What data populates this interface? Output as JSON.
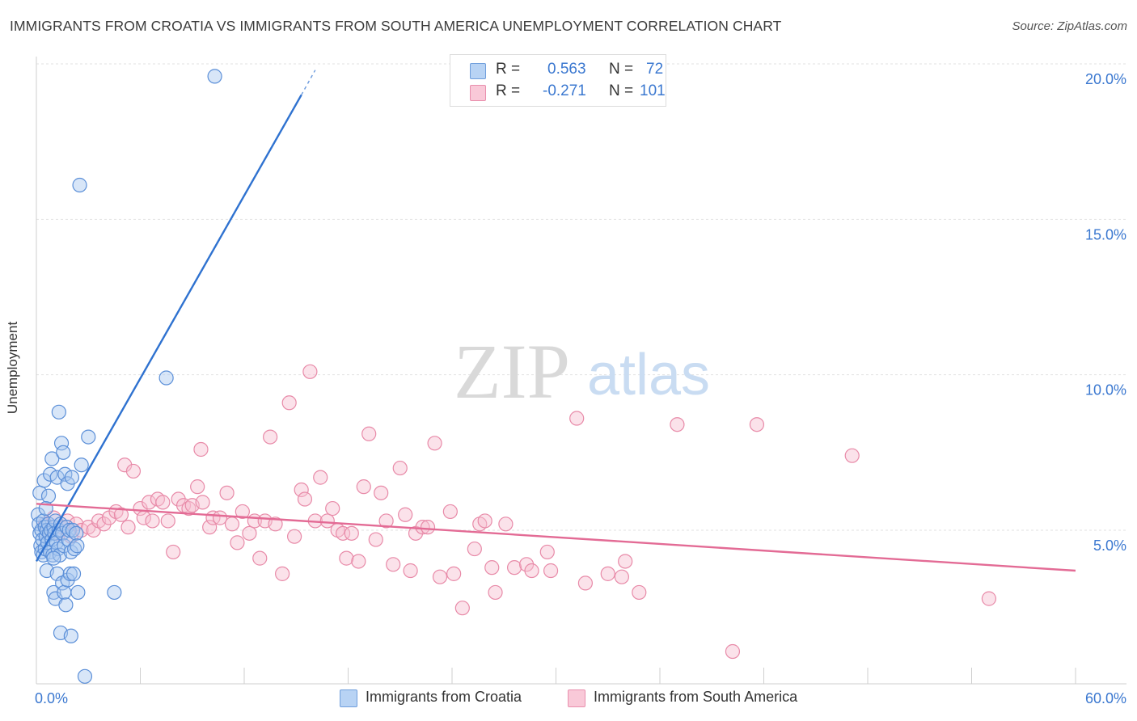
{
  "title": "IMMIGRANTS FROM CROATIA VS IMMIGRANTS FROM SOUTH AMERICA UNEMPLOYMENT CORRELATION CHART",
  "source": "Source: ZipAtlas.com",
  "watermark": {
    "zip": "ZIP",
    "atlas": "atlas"
  },
  "legend": {
    "r_label": "R =",
    "n_label": "N =",
    "rows": [
      {
        "r": "0.563",
        "n": "72"
      },
      {
        "r": "-0.271",
        "n": "101"
      }
    ]
  },
  "chart_data": {
    "type": "scatter",
    "title": "IMMIGRANTS FROM CROATIA VS IMMIGRANTS FROM SOUTH AMERICA UNEMPLOYMENT CORRELATION CHART",
    "xlabel": "",
    "ylabel": "Unemployment",
    "xlim": [
      0,
      60
    ],
    "ylim": [
      0,
      21
    ],
    "x_tick_labels": [
      "0.0%",
      "60.0%"
    ],
    "y_ticks": [
      5,
      10,
      15,
      20
    ],
    "y_tick_labels": [
      "5.0%",
      "10.0%",
      "15.0%",
      "20.0%"
    ],
    "grid": true,
    "legend_position": "bottom",
    "colors": {
      "croatia_fill": "#a8c8f0",
      "croatia_stroke": "#5b8fd8",
      "croatia_line": "#2f72d0",
      "sa_fill": "#f7bfd0",
      "sa_stroke": "#e88aa8",
      "sa_line": "#e36b95",
      "tick_label": "#3b78d0",
      "grid": "#e2e2e2"
    },
    "series": [
      {
        "name": "Immigrants from Croatia",
        "r": 0.563,
        "n": 72,
        "trend": {
          "x0": 0.0,
          "y0": 4.0,
          "x1": 15.3,
          "y1": 19.0,
          "dash_to_x": 16.1,
          "dash_to_y": 19.8
        },
        "points": [
          [
            0.1,
            5.5
          ],
          [
            0.15,
            5.2
          ],
          [
            0.2,
            4.9
          ],
          [
            0.2,
            6.2
          ],
          [
            0.25,
            4.5
          ],
          [
            0.3,
            4.3
          ],
          [
            0.3,
            5.0
          ],
          [
            0.35,
            4.7
          ],
          [
            0.4,
            5.3
          ],
          [
            0.4,
            4.2
          ],
          [
            0.45,
            6.6
          ],
          [
            0.5,
            5.1
          ],
          [
            0.5,
            4.4
          ],
          [
            0.55,
            4.8
          ],
          [
            0.6,
            5.0
          ],
          [
            0.6,
            3.7
          ],
          [
            0.65,
            4.6
          ],
          [
            0.7,
            6.1
          ],
          [
            0.7,
            5.2
          ],
          [
            0.75,
            4.9
          ],
          [
            0.8,
            4.3
          ],
          [
            0.8,
            6.8
          ],
          [
            0.85,
            5.0
          ],
          [
            0.9,
            4.7
          ],
          [
            0.9,
            7.3
          ],
          [
            0.95,
            4.2
          ],
          [
            1.0,
            5.1
          ],
          [
            1.0,
            3.0
          ],
          [
            1.05,
            4.9
          ],
          [
            1.1,
            5.3
          ],
          [
            1.1,
            2.8
          ],
          [
            1.15,
            4.6
          ],
          [
            1.2,
            6.7
          ],
          [
            1.2,
            3.6
          ],
          [
            1.25,
            4.4
          ],
          [
            1.3,
            5.0
          ],
          [
            1.3,
            8.8
          ],
          [
            1.35,
            4.2
          ],
          [
            1.4,
            5.2
          ],
          [
            1.4,
            1.7
          ],
          [
            1.45,
            7.8
          ],
          [
            1.5,
            4.9
          ],
          [
            1.5,
            3.3
          ],
          [
            1.55,
            7.5
          ],
          [
            1.6,
            4.5
          ],
          [
            1.6,
            3.0
          ],
          [
            1.65,
            6.8
          ],
          [
            1.7,
            2.6
          ],
          [
            1.75,
            5.1
          ],
          [
            1.8,
            3.4
          ],
          [
            1.8,
            6.5
          ],
          [
            1.85,
            4.7
          ],
          [
            1.9,
            5.0
          ],
          [
            1.95,
            3.6
          ],
          [
            2.0,
            1.6
          ],
          [
            2.0,
            4.3
          ],
          [
            2.05,
            6.7
          ],
          [
            2.1,
            5.0
          ],
          [
            2.15,
            3.6
          ],
          [
            2.2,
            4.4
          ],
          [
            2.3,
            4.9
          ],
          [
            2.35,
            4.5
          ],
          [
            2.4,
            3.0
          ],
          [
            2.5,
            16.1
          ],
          [
            2.6,
            7.1
          ],
          [
            2.8,
            0.3
          ],
          [
            3.0,
            8.0
          ],
          [
            4.5,
            3.0
          ],
          [
            7.5,
            9.9
          ],
          [
            10.3,
            19.6
          ],
          [
            1.0,
            4.1
          ],
          [
            0.55,
            5.7
          ]
        ]
      },
      {
        "name": "Immigrants from South America",
        "r": -0.271,
        "n": 101,
        "trend": {
          "x0": 0.0,
          "y0": 5.85,
          "x1": 60.0,
          "y1": 3.7
        },
        "points": [
          [
            0.5,
            5.2
          ],
          [
            0.8,
            5.0
          ],
          [
            1.0,
            5.4
          ],
          [
            1.2,
            4.9
          ],
          [
            1.5,
            5.1
          ],
          [
            1.8,
            5.3
          ],
          [
            2.0,
            4.8
          ],
          [
            2.3,
            5.2
          ],
          [
            2.6,
            5.0
          ],
          [
            3.0,
            5.1
          ],
          [
            3.3,
            5.0
          ],
          [
            3.6,
            5.3
          ],
          [
            3.9,
            5.2
          ],
          [
            4.2,
            5.4
          ],
          [
            4.6,
            5.6
          ],
          [
            4.9,
            5.5
          ],
          [
            5.1,
            7.1
          ],
          [
            5.3,
            5.1
          ],
          [
            5.6,
            6.9
          ],
          [
            6.0,
            5.7
          ],
          [
            6.2,
            5.4
          ],
          [
            6.5,
            5.9
          ],
          [
            6.7,
            5.3
          ],
          [
            7.0,
            6.0
          ],
          [
            7.3,
            5.9
          ],
          [
            7.6,
            5.3
          ],
          [
            7.9,
            4.3
          ],
          [
            8.2,
            6.0
          ],
          [
            8.5,
            5.8
          ],
          [
            8.8,
            5.7
          ],
          [
            9.0,
            5.8
          ],
          [
            9.3,
            6.4
          ],
          [
            9.6,
            5.9
          ],
          [
            9.5,
            7.6
          ],
          [
            10.0,
            5.1
          ],
          [
            10.2,
            5.4
          ],
          [
            10.6,
            5.4
          ],
          [
            11.0,
            6.2
          ],
          [
            11.3,
            5.2
          ],
          [
            11.6,
            4.6
          ],
          [
            11.9,
            5.6
          ],
          [
            12.3,
            4.9
          ],
          [
            12.6,
            5.3
          ],
          [
            12.9,
            4.1
          ],
          [
            13.2,
            5.3
          ],
          [
            13.5,
            8.0
          ],
          [
            13.8,
            5.2
          ],
          [
            14.2,
            3.6
          ],
          [
            14.6,
            9.1
          ],
          [
            14.9,
            4.8
          ],
          [
            15.3,
            6.3
          ],
          [
            15.5,
            6.0
          ],
          [
            15.8,
            10.1
          ],
          [
            16.1,
            5.3
          ],
          [
            16.4,
            6.7
          ],
          [
            16.8,
            5.3
          ],
          [
            17.1,
            5.7
          ],
          [
            17.4,
            5.0
          ],
          [
            17.7,
            4.9
          ],
          [
            17.9,
            4.1
          ],
          [
            18.2,
            4.9
          ],
          [
            18.6,
            4.0
          ],
          [
            18.9,
            6.4
          ],
          [
            19.2,
            8.1
          ],
          [
            19.6,
            4.7
          ],
          [
            19.9,
            6.2
          ],
          [
            20.2,
            5.3
          ],
          [
            20.6,
            3.9
          ],
          [
            21.0,
            7.0
          ],
          [
            21.3,
            5.5
          ],
          [
            21.6,
            3.7
          ],
          [
            21.9,
            4.9
          ],
          [
            22.3,
            5.1
          ],
          [
            22.6,
            5.1
          ],
          [
            23.0,
            7.8
          ],
          [
            23.3,
            3.5
          ],
          [
            23.9,
            5.6
          ],
          [
            24.1,
            3.6
          ],
          [
            24.6,
            2.5
          ],
          [
            25.3,
            4.4
          ],
          [
            25.6,
            5.2
          ],
          [
            25.9,
            5.3
          ],
          [
            26.3,
            3.8
          ],
          [
            26.5,
            3.0
          ],
          [
            27.1,
            5.2
          ],
          [
            27.6,
            3.8
          ],
          [
            28.3,
            3.9
          ],
          [
            28.6,
            3.7
          ],
          [
            29.5,
            4.3
          ],
          [
            29.7,
            3.7
          ],
          [
            31.2,
            8.6
          ],
          [
            31.7,
            3.3
          ],
          [
            33.0,
            3.6
          ],
          [
            33.8,
            3.5
          ],
          [
            34.0,
            4.0
          ],
          [
            34.8,
            3.0
          ],
          [
            37.0,
            8.4
          ],
          [
            40.2,
            1.1
          ],
          [
            41.6,
            8.4
          ],
          [
            47.1,
            7.4
          ],
          [
            55.0,
            2.8
          ]
        ]
      }
    ]
  },
  "bottom_legend": [
    {
      "label": "Immigrants from Croatia"
    },
    {
      "label": "Immigrants from South America"
    }
  ]
}
